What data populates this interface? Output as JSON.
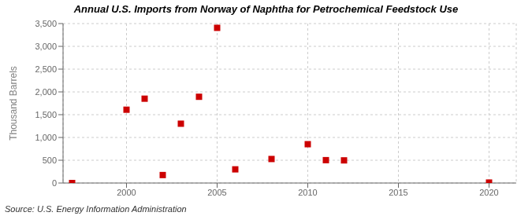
{
  "chart_data": {
    "type": "scatter",
    "title": "Annual U.S. Imports from Norway of Naphtha for Petrochemical Feedstock Use",
    "y_label": "Thousand Barrels",
    "annotations": [
      "Source: U.S. Energy Information Administration"
    ],
    "x": [
      1997,
      2000,
      2001,
      2002,
      2003,
      2004,
      2005,
      2006,
      2008,
      2010,
      2011,
      2012,
      2020
    ],
    "values": [
      0,
      1609,
      1851,
      175,
      1302,
      1893,
      3406,
      300,
      527,
      852,
      502,
      497,
      10
    ],
    "color": "#cc0000",
    "marker": "square",
    "xlim": [
      1996.5,
      2021.5
    ],
    "xticks": [
      2000,
      2005,
      2010,
      2015,
      2020
    ],
    "ylim": [
      0,
      3500
    ],
    "yticks": [
      0,
      500,
      {
        "value": 1000,
        "label": "1,000"
      },
      {
        "value": 1500,
        "label": "1,500"
      },
      {
        "value": 2000,
        "label": "2,000"
      },
      {
        "value": 2500,
        "label": "2,500"
      },
      {
        "value": 3000,
        "label": "3,000"
      },
      {
        "value": 3500,
        "label": "3,500"
      }
    ],
    "grid": true
  }
}
